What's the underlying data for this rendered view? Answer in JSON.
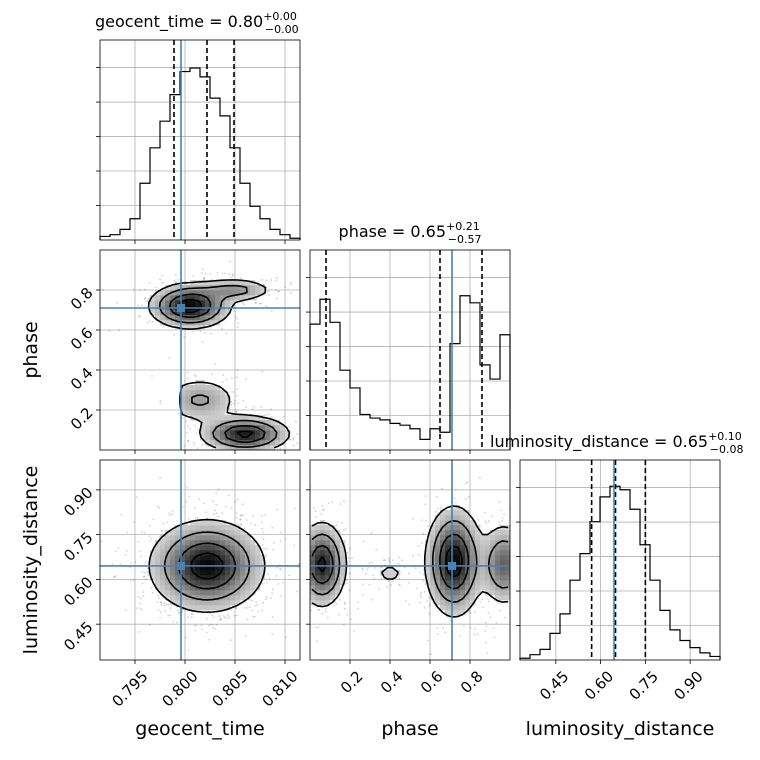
{
  "chart_data": {
    "type": "corner",
    "truth_color": "#4682b4",
    "parameters": [
      {
        "name": "geocent_time",
        "label": "geocent_time",
        "title_prefix": "geocent_time = 0.80",
        "sup": "+0.00",
        "sub": "−0.00",
        "truth": 0.7996,
        "quantiles": [
          0.7989,
          0.8022,
          0.8049
        ],
        "range": [
          0.7915,
          0.8115
        ],
        "ticks": [
          0.795,
          0.8,
          0.805,
          0.81
        ],
        "tick_labels": [
          "0.795",
          "0.800",
          "0.805",
          "0.810"
        ],
        "hist": [
          0.02,
          0.03,
          0.06,
          0.12,
          0.32,
          0.52,
          0.67,
          0.82,
          0.95,
          0.97,
          0.92,
          0.8,
          0.7,
          0.52,
          0.32,
          0.19,
          0.12,
          0.06,
          0.03,
          0.01
        ]
      },
      {
        "name": "phase",
        "label": "phase",
        "title_prefix": "phase = 0.65",
        "sup": "+0.21",
        "sub": "−0.57",
        "truth": 0.71,
        "quantiles": [
          0.08,
          0.65,
          0.86
        ],
        "range": [
          0.0,
          1.0
        ],
        "ticks": [
          0.2,
          0.4,
          0.6,
          0.8
        ],
        "tick_labels": [
          "0.2",
          "0.4",
          "0.6",
          "0.8"
        ],
        "hist": [
          0.71,
          0.85,
          0.72,
          0.45,
          0.35,
          0.2,
          0.18,
          0.17,
          0.15,
          0.14,
          0.12,
          0.06,
          0.12,
          0.1,
          0.6,
          0.87,
          0.83,
          0.48,
          0.4,
          0.65
        ]
      },
      {
        "name": "luminosity_distance",
        "label": "luminosity_distance",
        "title_prefix": "luminosity_distance = 0.65",
        "sup": "+0.10",
        "sub": "−0.08",
        "truth": 0.645,
        "quantiles": [
          0.57,
          0.65,
          0.75
        ],
        "range": [
          0.33,
          1.0
        ],
        "ticks": [
          0.45,
          0.6,
          0.75,
          0.9
        ],
        "tick_labels": [
          "0.45",
          "0.60",
          "0.75",
          "0.90"
        ],
        "hist": [
          0.01,
          0.03,
          0.06,
          0.15,
          0.26,
          0.45,
          0.6,
          0.78,
          0.92,
          0.98,
          0.96,
          0.85,
          0.65,
          0.45,
          0.28,
          0.17,
          0.11,
          0.07,
          0.04,
          0.02
        ]
      }
    ],
    "density_pairs": [
      {
        "x": "geocent_time",
        "y": "phase",
        "modes": [
          {
            "x": 0.8005,
            "y": 0.72,
            "sx": 0.002,
            "sy": 0.055,
            "w": 1.0
          },
          {
            "x": 0.805,
            "y": 0.8,
            "sx": 0.002,
            "sy": 0.03,
            "w": 0.4
          },
          {
            "x": 0.806,
            "y": 0.08,
            "sx": 0.0022,
            "sy": 0.045,
            "w": 0.9
          },
          {
            "x": 0.8015,
            "y": 0.25,
            "sx": 0.002,
            "sy": 0.06,
            "w": 0.35
          }
        ],
        "cutoff_x_below": 0.7996,
        "cutoff_y_range": [
          0.0,
          0.45
        ]
      },
      {
        "x": "geocent_time",
        "y": "luminosity_distance",
        "modes": [
          {
            "x": 0.8022,
            "y": 0.645,
            "sx": 0.0028,
            "sy": 0.075,
            "w": 1.0
          }
        ]
      },
      {
        "x": "phase",
        "y": "luminosity_distance",
        "modes": [
          {
            "x": 0.06,
            "y": 0.65,
            "sx": 0.06,
            "sy": 0.07,
            "w": 0.9
          },
          {
            "x": 0.72,
            "y": 0.66,
            "sx": 0.07,
            "sy": 0.09,
            "w": 1.0
          },
          {
            "x": 0.97,
            "y": 0.65,
            "sx": 0.06,
            "sy": 0.07,
            "w": 0.6
          },
          {
            "x": 0.4,
            "y": 0.62,
            "sx": 0.06,
            "sy": 0.03,
            "w": 0.15
          }
        ]
      }
    ]
  }
}
